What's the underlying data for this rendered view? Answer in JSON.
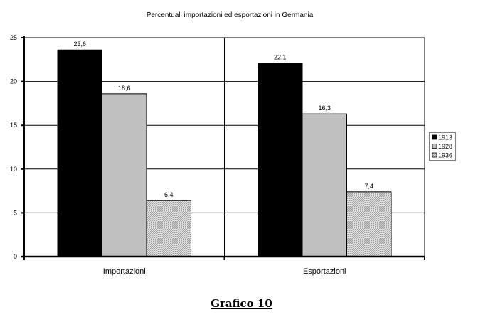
{
  "chart_data": {
    "type": "bar",
    "title": "Percentuali importazioni ed esportazioni in Germania",
    "categories": [
      "Importazioni",
      "Esportazioni"
    ],
    "series": [
      {
        "name": "1913",
        "values": [
          23.6,
          22.1
        ],
        "labels": [
          "23,6",
          "22,1"
        ],
        "color": "#000000"
      },
      {
        "name": "1928",
        "values": [
          18.6,
          16.3
        ],
        "labels": [
          "18,6",
          "16,3"
        ],
        "color": "#c0c0c0"
      },
      {
        "name": "1936",
        "values": [
          6.4,
          7.4
        ],
        "labels": [
          "6,4",
          "7,4"
        ],
        "color": "hatched"
      }
    ],
    "yticks": [
      "0",
      "5",
      "10",
      "15",
      "20",
      "25"
    ],
    "ylim": [
      0,
      25
    ],
    "grid": true,
    "legend": "right",
    "xlabel": "",
    "ylabel": ""
  },
  "caption": "Grafico 10"
}
